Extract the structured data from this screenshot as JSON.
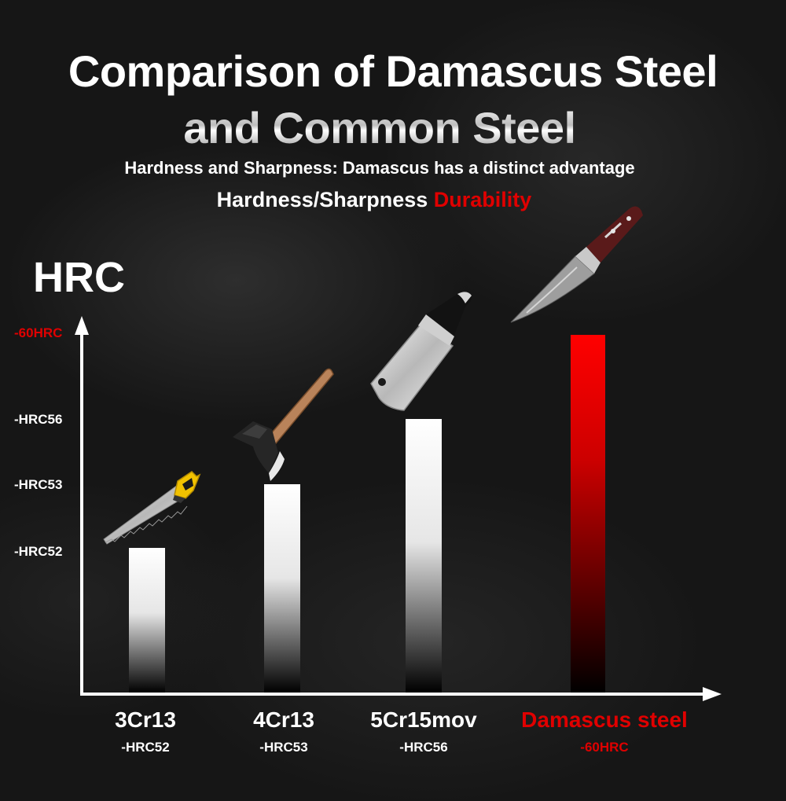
{
  "header": {
    "title_line1": "Comparison of Damascus Steel",
    "title_line2": "and Common Steel",
    "subtitle": "Hardness and Sharpness: Damascus has a distinct advantage",
    "tagline_white": "Hardness/Sharpness ",
    "tagline_red": "Durability"
  },
  "colors": {
    "accent_red": "#e00000",
    "bar_white": "#ffffff",
    "bar_red": "#ff0000",
    "background": "#161616"
  },
  "icons": [
    "hand-saw-icon",
    "axe-icon",
    "cleaver-icon",
    "damascus-knife-icon"
  ],
  "chart_data": {
    "type": "bar",
    "ylabel": "HRC",
    "categories": [
      "3Cr13",
      "4Cr13",
      "5Cr15mov",
      "Damascus steel"
    ],
    "value_labels": [
      "-HRC52",
      "-HRC53",
      "-HRC56",
      "-60HRC"
    ],
    "values": [
      52,
      53,
      56,
      60
    ],
    "yticks": [
      {
        "label": "-60HRC",
        "value": 60,
        "highlight": true
      },
      {
        "label": "-HRC56",
        "value": 56,
        "highlight": false
      },
      {
        "label": "-HRC53",
        "value": 53,
        "highlight": false
      },
      {
        "label": "-HRC52",
        "value": 52,
        "highlight": false
      }
    ],
    "highlight_index": 3,
    "grid": false,
    "legend": "none"
  }
}
